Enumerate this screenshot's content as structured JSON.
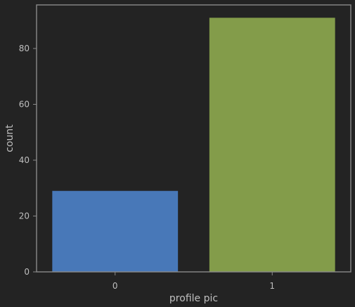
{
  "chart_data": {
    "type": "bar",
    "title": "",
    "xlabel": "profile pic",
    "ylabel": "count",
    "categories": [
      "0",
      "1"
    ],
    "values": [
      29,
      91
    ],
    "ylim": [
      0,
      95.6
    ],
    "yticks": [
      0,
      20,
      40,
      60,
      80
    ],
    "ytick_labels": [
      "0",
      "20",
      "40",
      "60",
      "80"
    ],
    "grid": false,
    "legend": "none",
    "colors": {
      "background": "#232323",
      "frame": "#8a8a8a",
      "text": "#bfbfbf",
      "bars": [
        "#4878b8",
        "#839c4a"
      ]
    }
  }
}
